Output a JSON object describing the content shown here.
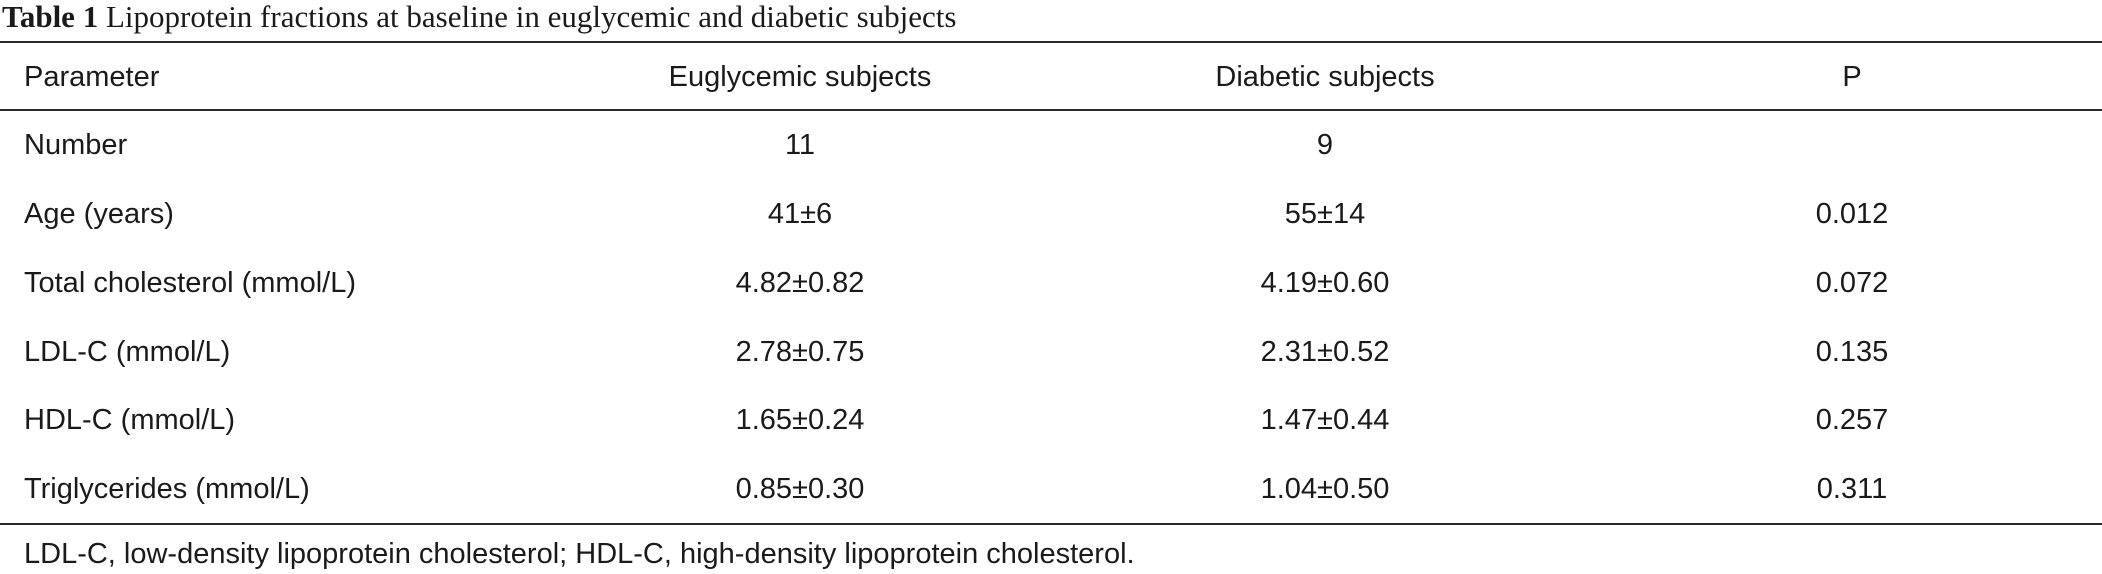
{
  "caption": {
    "label": "Table 1",
    "text": "Lipoprotein fractions at baseline in euglycemic and diabetic subjects"
  },
  "table": {
    "headers": [
      "Parameter",
      "Euglycemic subjects",
      "Diabetic subjects",
      "P"
    ],
    "rows": [
      [
        "Number",
        "11",
        "9",
        ""
      ],
      [
        "Age (years)",
        "41±6",
        "55±14",
        "0.012"
      ],
      [
        "Total cholesterol (mmol/L)",
        "4.82±0.82",
        "4.19±0.60",
        "0.072"
      ],
      [
        "LDL-C (mmol/L)",
        "2.78±0.75",
        "2.31±0.52",
        "0.135"
      ],
      [
        "HDL-C (mmol/L)",
        "1.65±0.24",
        "1.47±0.44",
        "0.257"
      ],
      [
        "Triglycerides (mmol/L)",
        "0.85±0.30",
        "1.04±0.50",
        "0.311"
      ]
    ]
  },
  "footnote": "LDL-C, low-density lipoprotein cholesterol; HDL-C, high-density lipoprotein cholesterol."
}
